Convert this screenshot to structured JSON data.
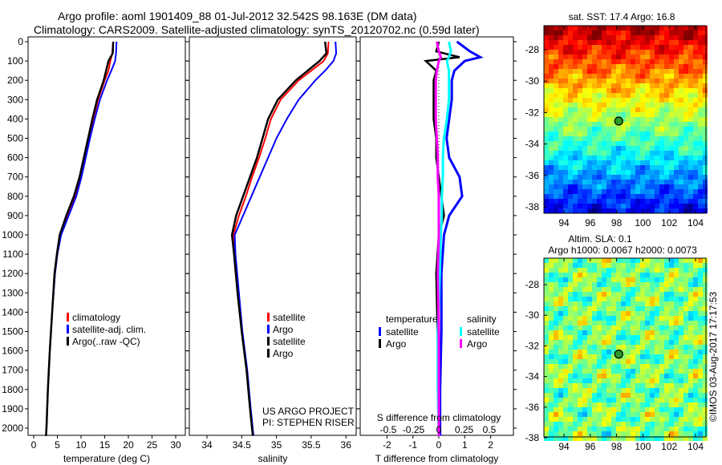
{
  "title_line1": "Argo profile: aoml 1901409_88 01-Jul-2012 32.542S 98.163E (DM data)",
  "title_line2": "Climatology: CARS2009. Satellite-adjusted climatology: synTS_20120702.nc (0.59d later)",
  "side_text": "©IMOS 03-Aug-2017 17:17:53",
  "project_line1": "US ARGO PROJECT",
  "project_line2": "PI: STEPHEN RISER",
  "colors": {
    "climatology": "#ff0000",
    "satellite": "#0000ff",
    "argo": "#000000",
    "sal_satellite": "#00ffff",
    "sal_argo": "#ff00ff"
  },
  "chart_data": [
    {
      "type": "line",
      "name": "temperature-profile",
      "xlabel": "temperature (deg C)",
      "xlim": [
        -1,
        32
      ],
      "ylim": [
        2040,
        0
      ],
      "xticks": [
        "0",
        "5",
        "10",
        "15",
        "20",
        "25",
        "30"
      ],
      "xtick_values": [
        0,
        5,
        10,
        15,
        20,
        25,
        30
      ],
      "yticks": [
        "0",
        "100",
        "200",
        "300",
        "400",
        "500",
        "600",
        "700",
        "800",
        "900",
        "1000",
        "1100",
        "1200",
        "1300",
        "1400",
        "1500",
        "1600",
        "1700",
        "1800",
        "1900",
        "2000"
      ],
      "legend": [
        "climatology",
        "satellite-adj. clim.",
        "Argo(..raw -QC)"
      ],
      "depth": [
        0,
        60,
        100,
        150,
        200,
        300,
        400,
        500,
        600,
        700,
        800,
        900,
        1000,
        1100,
        1200,
        1400,
        1600,
        1800,
        2000,
        2040
      ],
      "series": [
        {
          "name": "climatology",
          "values": [
            16.8,
            16.6,
            16.2,
            15.8,
            15.0,
            13.6,
            12.6,
            11.7,
            10.8,
            9.9,
            8.8,
            7.2,
            5.7,
            5.0,
            4.5,
            3.9,
            3.4,
            3.0,
            2.7,
            2.6
          ]
        },
        {
          "name": "satellite-adj. clim.",
          "values": [
            17.5,
            17.4,
            17.2,
            16.4,
            15.5,
            14.0,
            12.9,
            11.9,
            11.0,
            10.1,
            9.0,
            7.4,
            5.8,
            5.0,
            4.5,
            3.9,
            3.4,
            3.0,
            2.7,
            2.6
          ]
        },
        {
          "name": "Argo(..raw -QC)",
          "values": [
            16.8,
            16.7,
            15.8,
            15.3,
            14.8,
            13.4,
            12.4,
            11.5,
            10.6,
            9.7,
            8.5,
            6.9,
            5.5,
            4.9,
            4.4,
            3.9,
            3.4,
            3.0,
            2.7,
            2.6
          ]
        }
      ]
    },
    {
      "type": "line",
      "name": "salinity-profile",
      "xlabel": "salinity",
      "xlim": [
        33.75,
        36.1
      ],
      "ylim": [
        2040,
        0
      ],
      "xticks": [
        "34",
        "34.5",
        "35",
        "35.5",
        "36"
      ],
      "xtick_values": [
        34,
        34.5,
        35,
        35.5,
        36
      ],
      "legend": [
        "climatology",
        "satellite-adj. clim.",
        "Argo(..raw -QC)"
      ],
      "depth": [
        0,
        60,
        100,
        150,
        200,
        300,
        400,
        500,
        600,
        700,
        800,
        900,
        1000,
        1100,
        1300,
        1500,
        1700,
        1900,
        2040
      ],
      "series": [
        {
          "name": "climatology",
          "values": [
            35.75,
            35.74,
            35.68,
            35.5,
            35.32,
            35.06,
            34.92,
            34.84,
            34.75,
            34.65,
            34.56,
            34.46,
            34.38,
            34.4,
            34.45,
            34.5,
            34.57,
            34.62,
            34.66
          ]
        },
        {
          "name": "satellite-adj. clim.",
          "values": [
            35.85,
            35.86,
            35.82,
            35.7,
            35.56,
            35.32,
            35.15,
            35.0,
            34.88,
            34.76,
            34.64,
            34.52,
            34.4,
            34.41,
            34.46,
            34.51,
            34.58,
            34.63,
            34.67
          ]
        },
        {
          "name": "Argo(..raw -QC)",
          "values": [
            35.7,
            35.72,
            35.62,
            35.45,
            35.28,
            35.02,
            34.88,
            34.8,
            34.72,
            34.62,
            34.52,
            34.42,
            34.36,
            34.39,
            34.44,
            34.5,
            34.57,
            34.62,
            34.66
          ]
        }
      ]
    },
    {
      "type": "line",
      "name": "difference-profile",
      "xlabel": "T difference from climatology",
      "x2label": "S difference from climatology",
      "xlim": [
        -2.9,
        2.9
      ],
      "xticks": [
        "-2",
        "-1",
        "0",
        "1",
        "2"
      ],
      "xtick_values": [
        -2,
        -1,
        0,
        1,
        2
      ],
      "x2ticks": [
        "-0.5",
        "-0.25",
        "0",
        "0.25",
        "0.5"
      ],
      "x2tick_values": [
        -0.5,
        -0.25,
        0,
        0.25,
        0.5
      ],
      "legend_temperature_title": "temperature",
      "legend_salinity_title": "salinity",
      "legend": [
        "satellite",
        "Argo",
        "satellite",
        "Argo"
      ],
      "depth": [
        0,
        50,
        80,
        100,
        150,
        200,
        300,
        400,
        500,
        600,
        700,
        800,
        900,
        1000,
        1200,
        1500,
        1800,
        2040
      ],
      "series": [
        {
          "name": "T satellite",
          "values": [
            0.7,
            1.2,
            1.6,
            1.0,
            0.6,
            0.5,
            0.5,
            0.4,
            0.3,
            0.4,
            0.8,
            0.9,
            0.4,
            0.2,
            0.1,
            0.1,
            0.05,
            0.05
          ]
        },
        {
          "name": "T Argo",
          "values": [
            0.0,
            -0.1,
            0.8,
            -0.5,
            -0.1,
            -0.2,
            -0.2,
            -0.2,
            -0.1,
            -0.1,
            0.0,
            0.1,
            0.2,
            0.0,
            -0.1,
            -0.05,
            0,
            0
          ]
        },
        {
          "name": "S satellite",
          "values": [
            0.1,
            0.12,
            0.1,
            0.08,
            0.1,
            0.1,
            0.1,
            0.08,
            0.05,
            0.04,
            0.04,
            0.03,
            0.03,
            0.02,
            0.01,
            -0.01,
            -0.01,
            0
          ]
        },
        {
          "name": "S Argo",
          "values": [
            -0.02,
            0.0,
            0.02,
            0.0,
            -0.02,
            -0.03,
            -0.03,
            -0.03,
            -0.02,
            -0.01,
            -0.01,
            0.0,
            0.0,
            0.0,
            -0.01,
            0,
            0,
            0
          ]
        }
      ]
    },
    {
      "type": "heatmap",
      "name": "sst-map",
      "title": "sat. SST: 17.4 Argo: 16.8",
      "xticks": [
        "94",
        "96",
        "98",
        "100",
        "102",
        "104"
      ],
      "yticks": [
        "-28",
        "-30",
        "-32",
        "-34",
        "-36",
        "-38"
      ],
      "marker": [
        98.163,
        -32.542
      ]
    },
    {
      "type": "heatmap",
      "name": "sla-map",
      "title": "Altim. SLA: 0.1",
      "subtitle": "Argo h1000: 0.0067 h2000: 0.0073",
      "xticks": [
        "94",
        "96",
        "98",
        "100",
        "102",
        "104"
      ],
      "yticks": [
        "-28",
        "-30",
        "-32",
        "-34",
        "-36",
        "-38"
      ],
      "marker": [
        98.163,
        -32.542
      ]
    }
  ]
}
